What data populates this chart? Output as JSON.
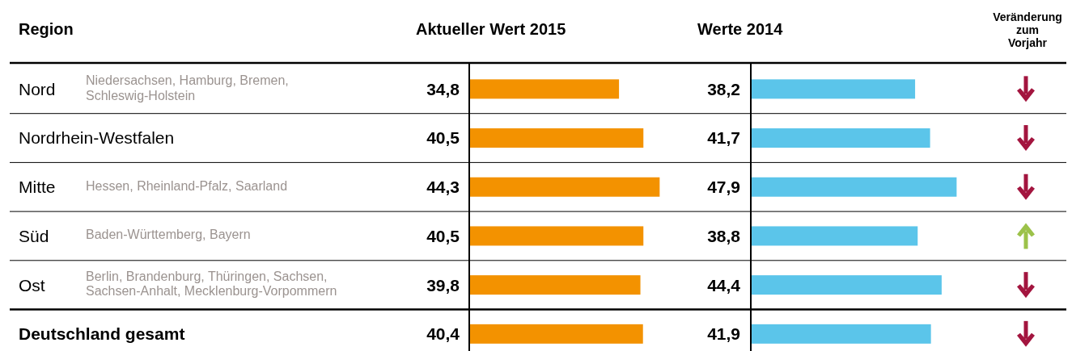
{
  "chart_data": [
    {
      "type": "bar",
      "orientation": "horizontal",
      "title": "Aktueller Wert 2015",
      "ylabel": "Region",
      "categories": [
        "Nord",
        "Nordrhein-Westfalen",
        "Mitte",
        "Süd",
        "Ost",
        "Deutschland gesamt"
      ],
      "values": [
        34.8,
        40.5,
        44.3,
        40.5,
        39.8,
        40.4
      ],
      "value_labels": [
        "34,8",
        "40,5",
        "44,3",
        "40,5",
        "39,8",
        "40,4"
      ],
      "color": "#f39200",
      "tick_labels": "y",
      "annotations": [
        "Niedersachsen, Hamburg, Bremen, Schleswig-Holstein",
        "Hessen, Rheinland-Pfalz, Saarland",
        "Baden-Württemberg, Bayern",
        "Berlin, Brandenburg, Thüringen, Sachsen, Sachsen-Anhalt, Mecklenburg-Vorpommern"
      ]
    },
    {
      "type": "bar",
      "orientation": "horizontal",
      "title": "Werte 2014",
      "categories": [
        null,
        null,
        null,
        null,
        null,
        null
      ],
      "values": [
        38.2,
        41.7,
        47.9,
        38.8,
        44.4,
        41.9
      ],
      "value_labels": [
        "38,2",
        "41,7",
        "47,9",
        "38,8",
        "44,4",
        "41,9"
      ],
      "color": "#5bc5ea",
      "annotations": [
        "Veränderung zum Vorjahr"
      ]
    }
  ]
}
